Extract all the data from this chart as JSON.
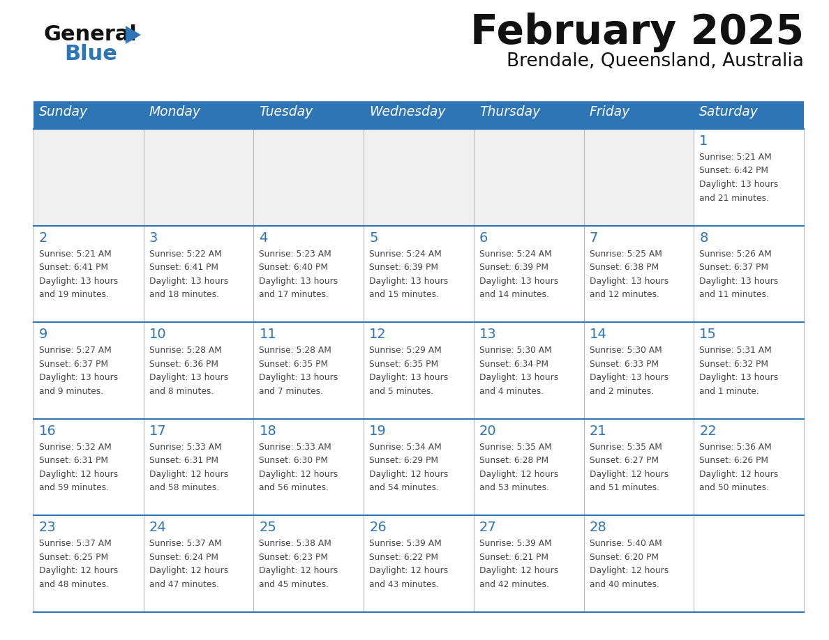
{
  "title": "February 2025",
  "subtitle": "Brendale, Queensland, Australia",
  "days_of_week": [
    "Sunday",
    "Monday",
    "Tuesday",
    "Wednesday",
    "Thursday",
    "Friday",
    "Saturday"
  ],
  "header_bg": "#2E75B6",
  "header_text_color": "#FFFFFF",
  "cell_bg_light": "#FFFFFF",
  "cell_bg_gray": "#F0F0F0",
  "cell_text_color": "#444444",
  "title_color": "#111111",
  "subtitle_color": "#111111",
  "logo_general_color": "#111111",
  "logo_blue_color": "#2E75B6",
  "weeks": [
    [
      {
        "day": null,
        "info": null
      },
      {
        "day": null,
        "info": null
      },
      {
        "day": null,
        "info": null
      },
      {
        "day": null,
        "info": null
      },
      {
        "day": null,
        "info": null
      },
      {
        "day": null,
        "info": null
      },
      {
        "day": 1,
        "info": "Sunrise: 5:21 AM\nSunset: 6:42 PM\nDaylight: 13 hours\nand 21 minutes."
      }
    ],
    [
      {
        "day": 2,
        "info": "Sunrise: 5:21 AM\nSunset: 6:41 PM\nDaylight: 13 hours\nand 19 minutes."
      },
      {
        "day": 3,
        "info": "Sunrise: 5:22 AM\nSunset: 6:41 PM\nDaylight: 13 hours\nand 18 minutes."
      },
      {
        "day": 4,
        "info": "Sunrise: 5:23 AM\nSunset: 6:40 PM\nDaylight: 13 hours\nand 17 minutes."
      },
      {
        "day": 5,
        "info": "Sunrise: 5:24 AM\nSunset: 6:39 PM\nDaylight: 13 hours\nand 15 minutes."
      },
      {
        "day": 6,
        "info": "Sunrise: 5:24 AM\nSunset: 6:39 PM\nDaylight: 13 hours\nand 14 minutes."
      },
      {
        "day": 7,
        "info": "Sunrise: 5:25 AM\nSunset: 6:38 PM\nDaylight: 13 hours\nand 12 minutes."
      },
      {
        "day": 8,
        "info": "Sunrise: 5:26 AM\nSunset: 6:37 PM\nDaylight: 13 hours\nand 11 minutes."
      }
    ],
    [
      {
        "day": 9,
        "info": "Sunrise: 5:27 AM\nSunset: 6:37 PM\nDaylight: 13 hours\nand 9 minutes."
      },
      {
        "day": 10,
        "info": "Sunrise: 5:28 AM\nSunset: 6:36 PM\nDaylight: 13 hours\nand 8 minutes."
      },
      {
        "day": 11,
        "info": "Sunrise: 5:28 AM\nSunset: 6:35 PM\nDaylight: 13 hours\nand 7 minutes."
      },
      {
        "day": 12,
        "info": "Sunrise: 5:29 AM\nSunset: 6:35 PM\nDaylight: 13 hours\nand 5 minutes."
      },
      {
        "day": 13,
        "info": "Sunrise: 5:30 AM\nSunset: 6:34 PM\nDaylight: 13 hours\nand 4 minutes."
      },
      {
        "day": 14,
        "info": "Sunrise: 5:30 AM\nSunset: 6:33 PM\nDaylight: 13 hours\nand 2 minutes."
      },
      {
        "day": 15,
        "info": "Sunrise: 5:31 AM\nSunset: 6:32 PM\nDaylight: 13 hours\nand 1 minute."
      }
    ],
    [
      {
        "day": 16,
        "info": "Sunrise: 5:32 AM\nSunset: 6:31 PM\nDaylight: 12 hours\nand 59 minutes."
      },
      {
        "day": 17,
        "info": "Sunrise: 5:33 AM\nSunset: 6:31 PM\nDaylight: 12 hours\nand 58 minutes."
      },
      {
        "day": 18,
        "info": "Sunrise: 5:33 AM\nSunset: 6:30 PM\nDaylight: 12 hours\nand 56 minutes."
      },
      {
        "day": 19,
        "info": "Sunrise: 5:34 AM\nSunset: 6:29 PM\nDaylight: 12 hours\nand 54 minutes."
      },
      {
        "day": 20,
        "info": "Sunrise: 5:35 AM\nSunset: 6:28 PM\nDaylight: 12 hours\nand 53 minutes."
      },
      {
        "day": 21,
        "info": "Sunrise: 5:35 AM\nSunset: 6:27 PM\nDaylight: 12 hours\nand 51 minutes."
      },
      {
        "day": 22,
        "info": "Sunrise: 5:36 AM\nSunset: 6:26 PM\nDaylight: 12 hours\nand 50 minutes."
      }
    ],
    [
      {
        "day": 23,
        "info": "Sunrise: 5:37 AM\nSunset: 6:25 PM\nDaylight: 12 hours\nand 48 minutes."
      },
      {
        "day": 24,
        "info": "Sunrise: 5:37 AM\nSunset: 6:24 PM\nDaylight: 12 hours\nand 47 minutes."
      },
      {
        "day": 25,
        "info": "Sunrise: 5:38 AM\nSunset: 6:23 PM\nDaylight: 12 hours\nand 45 minutes."
      },
      {
        "day": 26,
        "info": "Sunrise: 5:39 AM\nSunset: 6:22 PM\nDaylight: 12 hours\nand 43 minutes."
      },
      {
        "day": 27,
        "info": "Sunrise: 5:39 AM\nSunset: 6:21 PM\nDaylight: 12 hours\nand 42 minutes."
      },
      {
        "day": 28,
        "info": "Sunrise: 5:40 AM\nSunset: 6:20 PM\nDaylight: 12 hours\nand 40 minutes."
      },
      {
        "day": null,
        "info": null
      }
    ]
  ]
}
